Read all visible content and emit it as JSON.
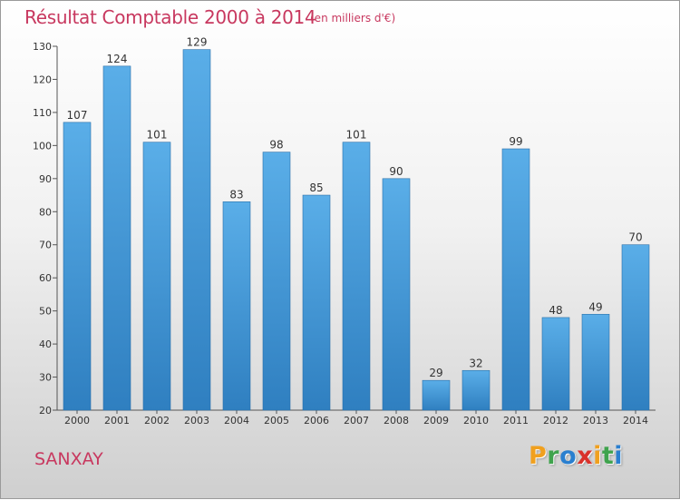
{
  "title": "Résultat Comptable 2000 à 2014",
  "unit": "(en milliers d'€)",
  "location": "SANXAY",
  "logo": {
    "letters": [
      "P",
      "r",
      "o",
      "x",
      "i",
      "t",
      "i"
    ],
    "colors": [
      "#f0a01e",
      "#3fa34d",
      "#2a7fcf",
      "#d9322b",
      "#f0a01e",
      "#3fa34d",
      "#2a7fcf"
    ]
  },
  "colors": {
    "bar_light": "#5aaee8",
    "bar_dark": "#2f7fc0",
    "text_accent": "#c8385f"
  },
  "chart_data": {
    "type": "bar",
    "categories": [
      "2000",
      "2001",
      "2002",
      "2003",
      "2004",
      "2005",
      "2006",
      "2007",
      "2008",
      "2009",
      "2010",
      "2011",
      "2012",
      "2013",
      "2014"
    ],
    "values": [
      107,
      124,
      101,
      129,
      83,
      98,
      85,
      101,
      90,
      29,
      32,
      99,
      48,
      49,
      70
    ],
    "ylim": [
      20,
      130
    ],
    "yticks": [
      20,
      30,
      40,
      50,
      60,
      70,
      80,
      90,
      100,
      110,
      120,
      130
    ],
    "grid": false,
    "legend": "none"
  }
}
